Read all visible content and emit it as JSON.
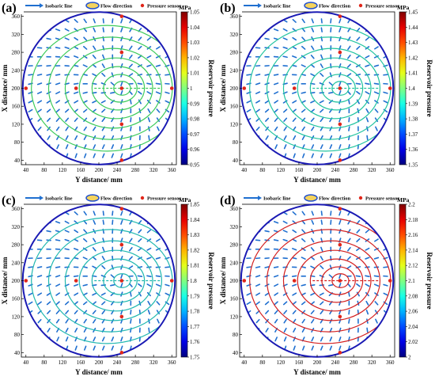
{
  "legend": {
    "isobaric": "Isobaric line",
    "flow": "Flow direction",
    "sensor": "Pressure sensor"
  },
  "colorbar_label": "Reservoir pressure",
  "colorbar_unit": "MPa",
  "colors": {
    "boundary": "#1a1ab4",
    "sensor": "#e0261a",
    "arrow": "#1f6fd0"
  },
  "chart_data": [
    {
      "type": "contour",
      "panel_label": "(a)",
      "xlabel": "Y distance/ mm",
      "ylabel": "X distance/ mm",
      "xticks": [
        40,
        80,
        120,
        160,
        200,
        240,
        280,
        320,
        360
      ],
      "yticks": [
        40,
        80,
        120,
        160,
        200,
        240,
        280,
        320,
        360
      ],
      "xlim": [
        30,
        370
      ],
      "ylim": [
        30,
        370
      ],
      "colorbar_range": [
        0.95,
        1.05
      ],
      "colorbar_ticks": [
        "1.05",
        "1.04",
        "1.03",
        "1.02",
        "1.01",
        "1",
        "0.99",
        "0.98",
        "0.97",
        "0.96",
        "0.95"
      ],
      "sensors": [
        [
          40,
          200
        ],
        [
          150,
          200
        ],
        [
          250,
          200
        ],
        [
          360,
          200
        ],
        [
          250,
          280
        ],
        [
          250,
          120
        ],
        [
          250,
          360
        ],
        [
          250,
          40
        ]
      ],
      "isobar_color": "#3ccb5a"
    },
    {
      "type": "contour",
      "panel_label": "(b)",
      "xlabel": "Y distance/ mm",
      "ylabel": "X distance/ mm",
      "xticks": [
        40,
        80,
        120,
        160,
        200,
        240,
        280,
        320,
        360
      ],
      "yticks": [
        40,
        80,
        120,
        160,
        200,
        240,
        280,
        320,
        360
      ],
      "xlim": [
        30,
        370
      ],
      "ylim": [
        30,
        370
      ],
      "colorbar_range": [
        1.35,
        1.45
      ],
      "colorbar_ticks": [
        "1.45",
        "1.44",
        "1.43",
        "1.42",
        "1.41",
        "1.4",
        "1.39",
        "1.38",
        "1.37",
        "1.36",
        "1.35"
      ],
      "sensors": [
        [
          40,
          200
        ],
        [
          150,
          200
        ],
        [
          250,
          200
        ],
        [
          360,
          200
        ],
        [
          250,
          280
        ],
        [
          250,
          120
        ],
        [
          250,
          360
        ],
        [
          250,
          40
        ]
      ],
      "isobar_color": "#22c4a0"
    },
    {
      "type": "contour",
      "panel_label": "(c)",
      "xlabel": "Y distance/ mm",
      "ylabel": "X distance/ mm",
      "xticks": [
        40,
        80,
        120,
        160,
        200,
        240,
        280,
        320,
        360
      ],
      "yticks": [
        40,
        80,
        120,
        160,
        200,
        240,
        280,
        320,
        360
      ],
      "xlim": [
        30,
        370
      ],
      "ylim": [
        30,
        370
      ],
      "colorbar_range": [
        1.75,
        1.85
      ],
      "colorbar_ticks": [
        "1.85",
        "1.84",
        "1.83",
        "1.82",
        "1.81",
        "1.8",
        "1.79",
        "1.78",
        "1.77",
        "1.76",
        "1.75"
      ],
      "sensors": [
        [
          40,
          200
        ],
        [
          150,
          200
        ],
        [
          250,
          200
        ],
        [
          360,
          200
        ],
        [
          250,
          280
        ],
        [
          250,
          120
        ],
        [
          250,
          360
        ],
        [
          250,
          40
        ]
      ],
      "isobar_color": "#20b8b0"
    },
    {
      "type": "contour",
      "panel_label": "(d)",
      "xlabel": "Y distance/ mm",
      "ylabel": "X distance/ mm",
      "xticks": [
        40,
        80,
        120,
        160,
        200,
        240,
        280,
        320,
        360
      ],
      "yticks": [
        40,
        80,
        120,
        160,
        200,
        240,
        280,
        320,
        360
      ],
      "xlim": [
        30,
        370
      ],
      "ylim": [
        30,
        370
      ],
      "colorbar_range": [
        2.0,
        2.2
      ],
      "colorbar_ticks": [
        "2.2",
        "2.18",
        "2.16",
        "2.14",
        "2.12",
        "2.1",
        "2.08",
        "2.06",
        "2.04",
        "2.02",
        "2"
      ],
      "sensors": [
        [
          40,
          200
        ],
        [
          150,
          200
        ],
        [
          250,
          200
        ],
        [
          360,
          200
        ],
        [
          250,
          280
        ],
        [
          250,
          120
        ],
        [
          250,
          360
        ],
        [
          250,
          40
        ]
      ],
      "isobar_color": "#d42020"
    }
  ]
}
